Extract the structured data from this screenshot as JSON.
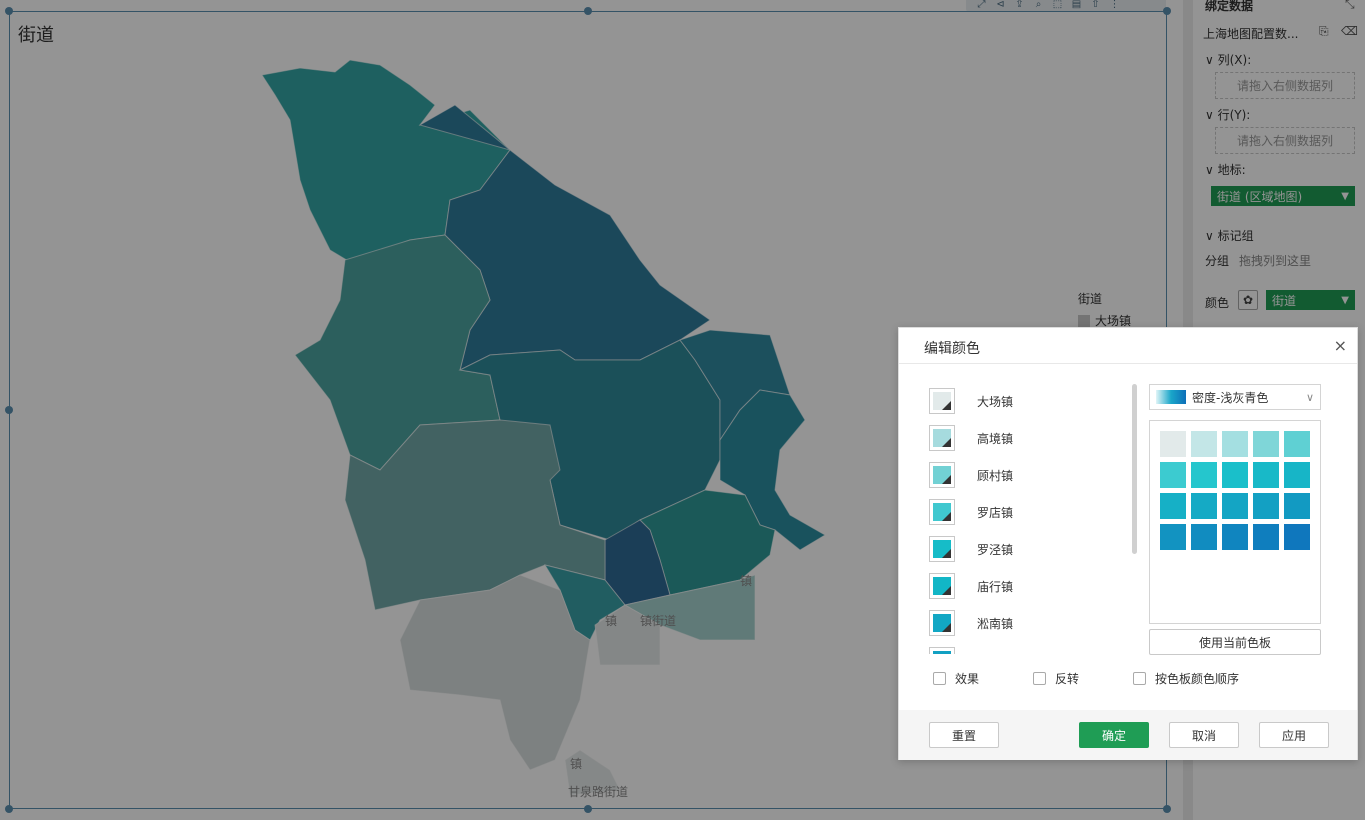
{
  "map": {
    "title": "街道",
    "labels": [
      "镇",
      "镇",
      "镇街道",
      "镇",
      "甘泉路街道"
    ]
  },
  "legend": {
    "title": "街道",
    "items": [
      "大场镇"
    ]
  },
  "panel": {
    "bind_title": "绑定数据",
    "dataset_name": "上海地图配置数...",
    "col_label": "列(X):",
    "col_placeholder": "请拖入右侧数据列",
    "row_label": "行(Y):",
    "row_placeholder": "请拖入右侧数据列",
    "geo_label": "地标:",
    "geo_value": "街道 (区域地图)",
    "mark_group_label": "标记组",
    "group_label": "分组",
    "group_placeholder": "拖拽列到这里",
    "color_label": "颜色",
    "color_value": "街道"
  },
  "dialog": {
    "title": "编辑颜色",
    "close": "×",
    "items": [
      {
        "name": "大场镇",
        "color": "#e2eaea"
      },
      {
        "name": "高境镇",
        "color": "#a6dbde"
      },
      {
        "name": "顾村镇",
        "color": "#72d1d4"
      },
      {
        "name": "罗店镇",
        "color": "#40c8cf"
      },
      {
        "name": "罗泾镇",
        "color": "#16bcc8"
      },
      {
        "name": "庙行镇",
        "color": "#12b6c6"
      },
      {
        "name": "淞南镇",
        "color": "#12a7c4"
      }
    ],
    "palette_name": "密度-浅灰青色",
    "palette_colors": [
      "#e2eaea",
      "#c3e6e7",
      "#a4dfe1",
      "#7fd6d8",
      "#5fd0d3",
      "#3ccbd0",
      "#25c6cd",
      "#1abfca",
      "#18b9c8",
      "#17b5c7",
      "#16b0c6",
      "#15aac5",
      "#14a5c4",
      "#13a0c3",
      "#129ac2",
      "#1293c1",
      "#118cc0",
      "#1085bf",
      "#0f7ebe",
      "#0f77bd"
    ],
    "use_palette": "使用当前色板",
    "effect_label": "效果",
    "reverse_label": "反转",
    "order_label": "按色板颜色顺序",
    "reset": "重置",
    "ok": "确定",
    "cancel": "取消",
    "apply": "应用"
  }
}
